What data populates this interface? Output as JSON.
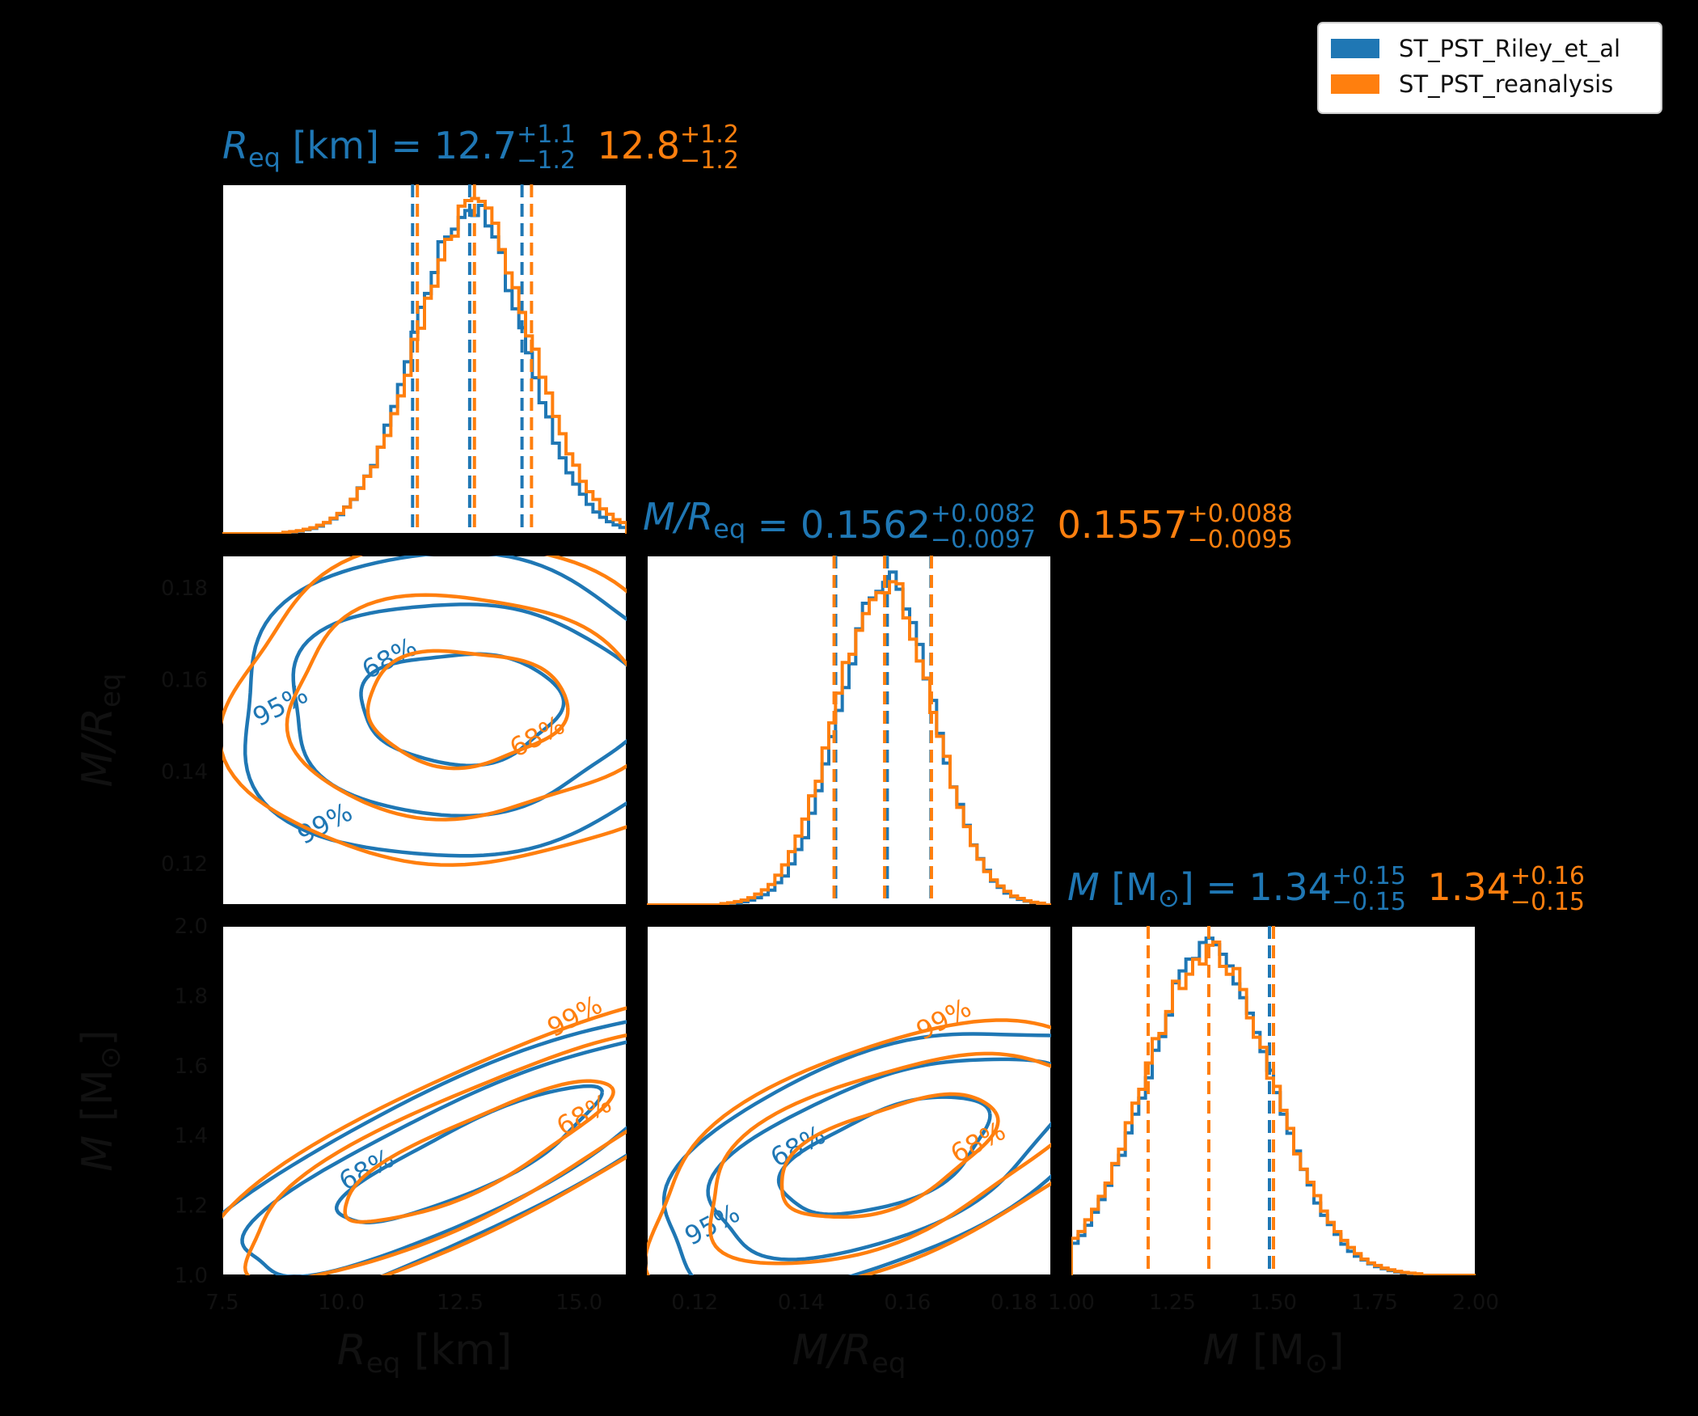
{
  "colors": {
    "blue": "#1f77b4",
    "orange": "#ff7f0e",
    "background": "#000000",
    "panel": "#ffffff"
  },
  "legend": {
    "placement": "top-right",
    "entries": [
      {
        "label": "ST_PST_Riley_et_al",
        "color": "#1f77b4"
      },
      {
        "label": "ST_PST_reanalysis",
        "color": "#ff7f0e"
      }
    ]
  },
  "parameters": [
    {
      "id": "Req",
      "symbol": "R",
      "sub": "eq",
      "unit": " [km]",
      "title": {
        "blue": {
          "median": "12.7",
          "plus": "+1.1",
          "minus": "−1.2"
        },
        "orange": {
          "median": "12.8",
          "plus": "+1.2",
          "minus": "−1.2"
        }
      }
    },
    {
      "id": "MR",
      "symbol": "M/R",
      "sub": "eq",
      "unit": "",
      "title": {
        "blue": {
          "median": "0.1562",
          "plus": "+0.0082",
          "minus": "−0.0097"
        },
        "orange": {
          "median": "0.1557",
          "plus": "+0.0088",
          "minus": "−0.0095"
        }
      }
    },
    {
      "id": "M",
      "symbol": "M",
      "sub": "",
      "unit": " [M",
      "unit_sub": "⊙",
      "unit_close": "]",
      "title": {
        "blue": {
          "median": "1.34",
          "plus": "+0.15",
          "minus": "−0.15"
        },
        "orange": {
          "median": "1.34",
          "plus": "+0.16",
          "minus": "−0.15"
        }
      }
    }
  ],
  "chart_data": {
    "type": "corner",
    "grid": false,
    "axes": {
      "Req": {
        "xlim": [
          7.5,
          16.0
        ],
        "ticks": [
          7.5,
          10.0,
          12.5,
          15.0
        ],
        "tick_labels": [
          "7.5",
          "10.0",
          "12.5",
          "15.0"
        ]
      },
      "MR": {
        "lim": [
          0.111,
          0.187
        ],
        "ticks": [
          0.12,
          0.14,
          0.16,
          0.18
        ],
        "tick_labels": [
          "0.12",
          "0.14",
          "0.16",
          "0.18"
        ],
        "x_tick_labels": [
          "0.12",
          "0.14",
          "0.16",
          "0.18"
        ]
      },
      "M": {
        "lim": [
          1.0,
          2.0
        ],
        "ticks": [
          1.0,
          1.2,
          1.4,
          1.6,
          1.8,
          2.0
        ],
        "tick_labels": [
          "1.0",
          "1.2",
          "1.4",
          "1.6",
          "1.8",
          "2.0"
        ],
        "x_ticks": [
          1.0,
          1.25,
          1.5,
          1.75,
          2.0
        ],
        "x_tick_labels": [
          "1.00",
          "1.25",
          "1.50",
          "1.75",
          "2.00"
        ]
      }
    },
    "axis_labels": {
      "x": [
        "R_eq [km]",
        "M/R_eq",
        "M [M⊙]"
      ],
      "y": [
        "M/R_eq",
        "M [M⊙]"
      ]
    },
    "marginals": [
      {
        "param": "Req",
        "blue": {
          "mean": 12.7,
          "sd": 1.15,
          "quantiles": [
            11.5,
            12.7,
            13.8
          ]
        },
        "orange": {
          "mean": 12.8,
          "sd": 1.2,
          "quantiles": [
            11.6,
            12.8,
            14.0
          ]
        }
      },
      {
        "param": "MR",
        "blue": {
          "mean": 0.1562,
          "sd": 0.0088,
          "quantiles": [
            0.1465,
            0.1562,
            0.1644
          ]
        },
        "orange": {
          "mean": 0.1557,
          "sd": 0.0091,
          "quantiles": [
            0.1462,
            0.1557,
            0.1645
          ]
        }
      },
      {
        "param": "M",
        "blue": {
          "mean": 1.34,
          "sd": 0.155,
          "quantiles": [
            1.19,
            1.34,
            1.49
          ]
        },
        "orange": {
          "mean": 1.34,
          "sd": 0.158,
          "quantiles": [
            1.19,
            1.34,
            1.5
          ]
        }
      }
    ],
    "contour_levels": [
      "68%",
      "95%",
      "99%"
    ],
    "joint": [
      {
        "x": "Req",
        "y": "MR",
        "blue": {
          "cx": 12.5,
          "cy": 0.154,
          "rx": [
            2.1,
            3.7,
            4.8
          ],
          "ry": [
            0.012,
            0.023,
            0.033
          ],
          "tilt": 0
        },
        "orange": {
          "cx": 12.6,
          "cy": 0.154,
          "rx": [
            2.1,
            3.8,
            5.0
          ],
          "ry": [
            0.0125,
            0.024,
            0.035
          ],
          "tilt": 0
        }
      },
      {
        "x": "Req",
        "y": "M",
        "blue": {
          "cx": 12.7,
          "cy": 1.34,
          "rx": [
            3.1,
            5.5,
            7.2
          ],
          "ry": [
            0.09,
            0.16,
            0.21
          ],
          "tilt": 0.85
        },
        "orange": {
          "cx": 12.8,
          "cy": 1.35,
          "rx": [
            3.2,
            5.7,
            7.6
          ],
          "ry": [
            0.095,
            0.17,
            0.22
          ],
          "tilt": 0.85
        }
      },
      {
        "x": "MR",
        "y": "M",
        "blue": {
          "cx": 0.156,
          "cy": 1.34,
          "rx": [
            0.021,
            0.036,
            0.047
          ],
          "ry": [
            0.13,
            0.22,
            0.29
          ],
          "tilt": 0.75
        },
        "orange": {
          "cx": 0.156,
          "cy": 1.34,
          "rx": [
            0.022,
            0.038,
            0.05
          ],
          "ry": [
            0.135,
            0.23,
            0.3
          ],
          "tilt": 0.75
        }
      }
    ]
  }
}
